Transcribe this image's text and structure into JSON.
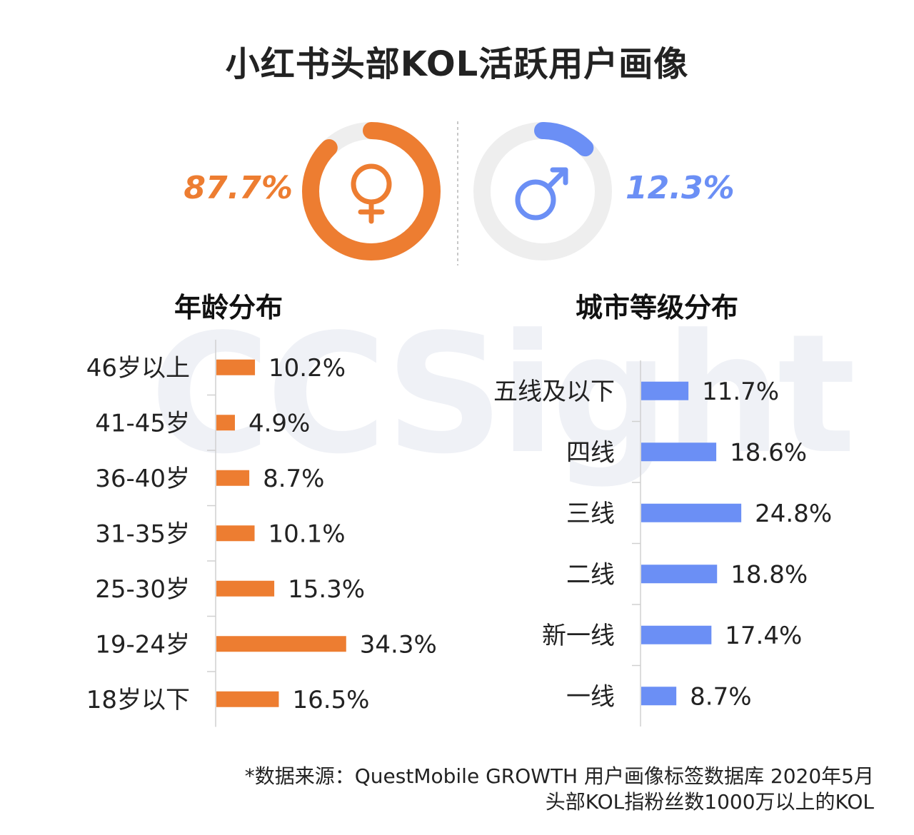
{
  "page": {
    "title": "小红书头部KOL活跃用户画像",
    "watermark": "CCSight",
    "footer": {
      "line1": "*数据来源：QuestMobile GROWTH 用户画像标签数据库 2020年5月",
      "line2": "头部KOL指粉丝数1000万以上的KOL"
    }
  },
  "gender": {
    "female": {
      "label": "87.7%",
      "value": 87.7,
      "color": "#ed7d31",
      "icon": "female-symbol-icon"
    },
    "male": {
      "label": "12.3%",
      "value": 12.3,
      "color": "#6b8ff5",
      "icon": "male-symbol-icon"
    },
    "track_color": "#eeeeee"
  },
  "chart_data": [
    {
      "type": "bar",
      "orientation": "horizontal",
      "title": "年龄分布",
      "color": "#ed7d31",
      "categories": [
        "46岁以上",
        "41-45岁",
        "36-40岁",
        "31-35岁",
        "25-30岁",
        "19-24岁",
        "18岁以下"
      ],
      "values": [
        10.2,
        4.9,
        8.7,
        10.1,
        15.3,
        34.3,
        16.5
      ],
      "labels": [
        "10.2%",
        "4.9%",
        "8.7%",
        "10.1%",
        "15.3%",
        "34.3%",
        "16.5%"
      ],
      "unit": "%"
    },
    {
      "type": "bar",
      "orientation": "horizontal",
      "title": "城市等级分布",
      "color": "#6b8ff5",
      "categories": [
        "五线及以下",
        "四线",
        "三线",
        "二线",
        "新一线",
        "一线"
      ],
      "values": [
        11.7,
        18.6,
        24.8,
        18.8,
        17.4,
        8.7
      ],
      "labels": [
        "11.7%",
        "18.6%",
        "24.8%",
        "18.8%",
        "17.4%",
        "8.7%"
      ],
      "unit": "%"
    }
  ]
}
